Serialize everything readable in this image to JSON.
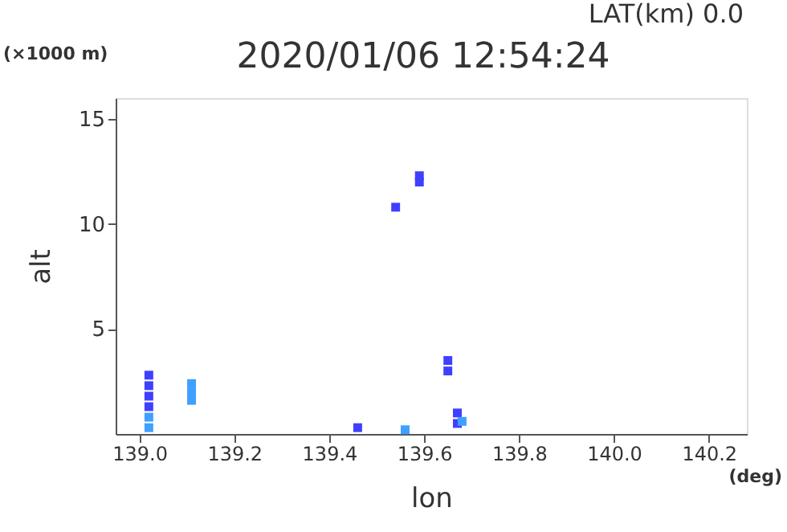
{
  "chart_data": {
    "type": "scatter",
    "title": "2020/01/06 12:54:24",
    "subtitle": "LAT(km) 0.0",
    "xlabel": "lon",
    "ylabel": "alt",
    "annotations": [
      "(×1000 m)",
      "(deg)"
    ],
    "xlim": [
      138.95,
      140.28
    ],
    "ylim": [
      0,
      16
    ],
    "xticks": [
      {
        "value": 139.0,
        "label": "139.0"
      },
      {
        "value": 139.2,
        "label": "139.2"
      },
      {
        "value": 139.4,
        "label": "139.4"
      },
      {
        "value": 139.6,
        "label": "139.6"
      },
      {
        "value": 139.8,
        "label": "139.8"
      },
      {
        "value": 140.0,
        "label": "140.0"
      },
      {
        "value": 140.2,
        "label": "140.2"
      }
    ],
    "yticks": [
      5,
      10,
      15
    ],
    "grid": false,
    "legend": false,
    "marker": "square",
    "series": [
      {
        "color": "#3f3fff",
        "x": [
          139.02,
          139.02,
          139.02,
          139.02,
          139.46,
          139.54,
          139.59,
          139.59,
          139.65,
          139.65,
          139.67,
          139.67
        ],
        "values": [
          1.3,
          1.8,
          2.3,
          2.8,
          0.3,
          10.8,
          12.0,
          12.3,
          3.0,
          3.5,
          0.5,
          1.0
        ]
      },
      {
        "color": "#3fa0ff",
        "x": [
          139.02,
          139.02,
          139.11,
          139.11,
          139.11,
          139.56,
          139.68
        ],
        "values": [
          0.3,
          0.8,
          1.6,
          2.0,
          2.4,
          0.2,
          0.6
        ]
      }
    ]
  }
}
